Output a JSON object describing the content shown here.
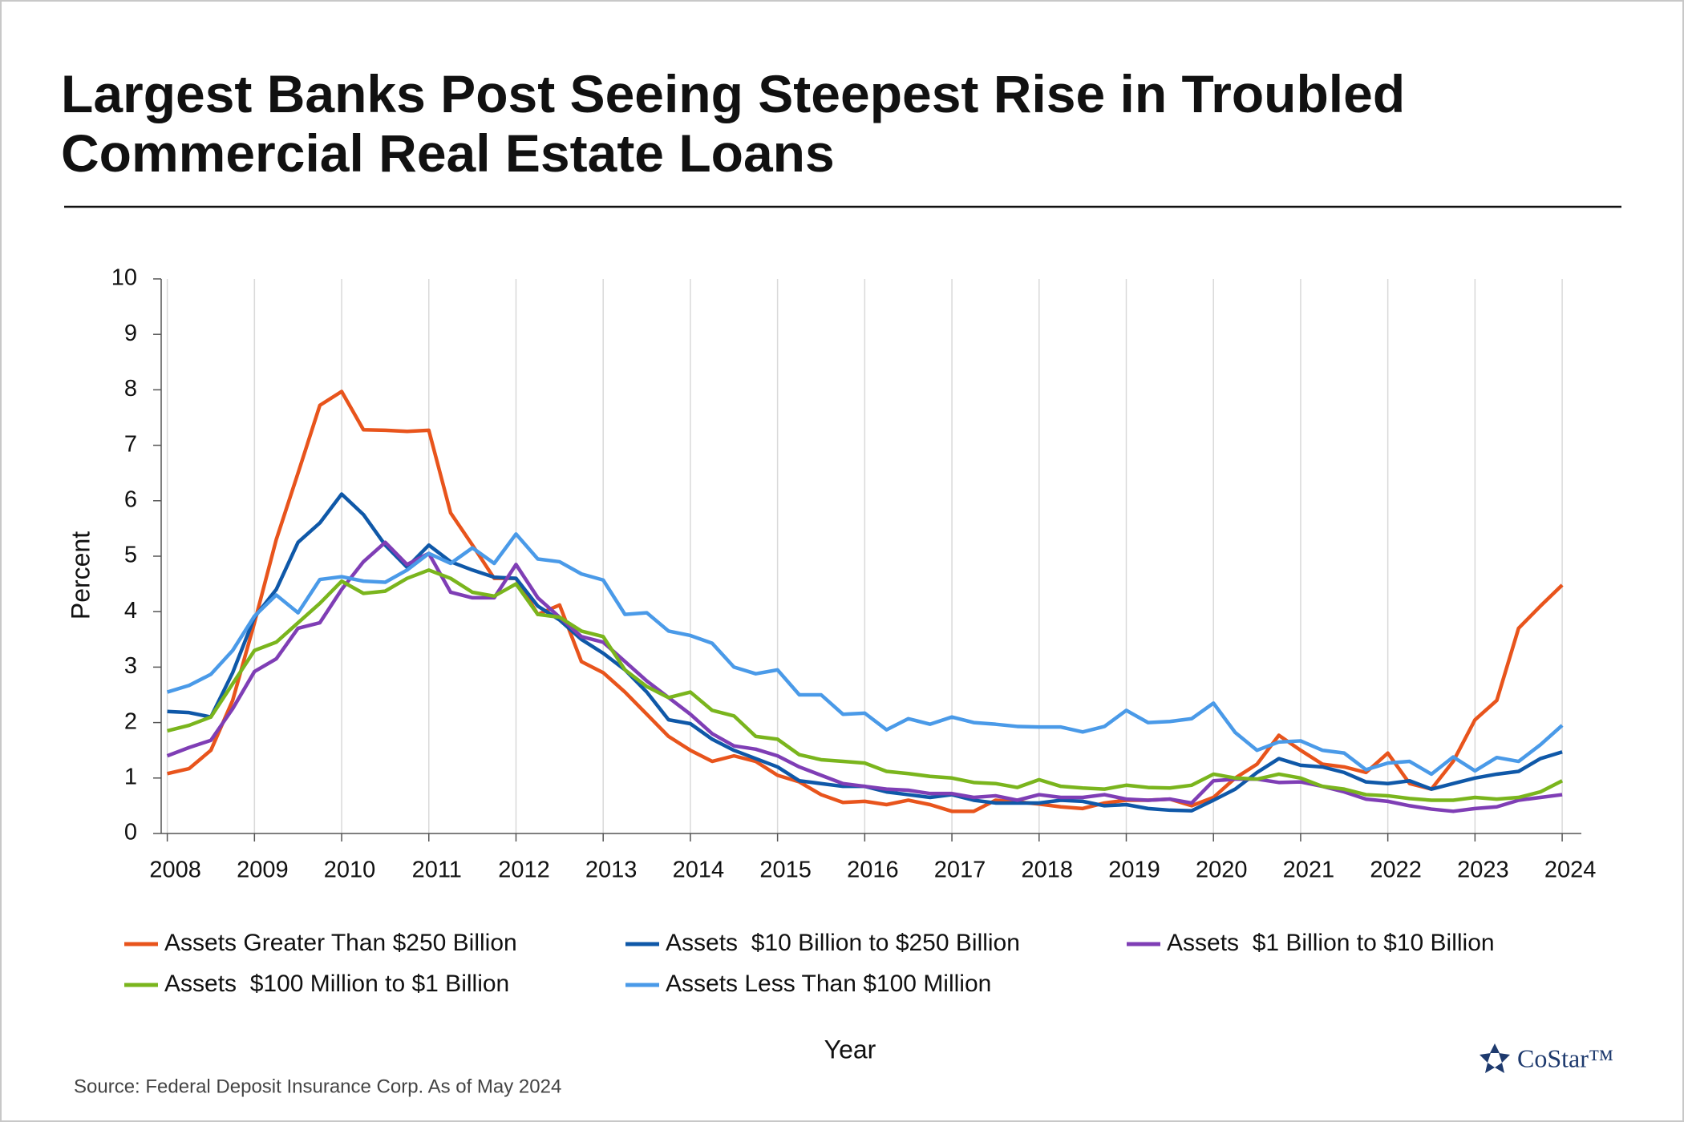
{
  "chart_data": {
    "type": "line",
    "title": [
      "Largest Banks Post Seeing Steepest Rise in Troubled",
      "Commercial Real Estate Loans"
    ],
    "x_label": "Year",
    "y_label": "Percent",
    "source": "Source:  Federal Deposit Insurance Corp. As of May 2024",
    "logo": "CoStar™",
    "legend": "bottom",
    "grid": "x",
    "xlim": [
      2007.93,
      2024.22
    ],
    "xticks": [
      2008,
      2009,
      2010,
      2011,
      2012,
      2013,
      2014,
      2015,
      2016,
      2017,
      2018,
      2019,
      2020,
      2021,
      2022,
      2023,
      2024
    ],
    "ylim": [
      0,
      10
    ],
    "yticks": [
      0,
      1,
      2,
      3,
      4,
      5,
      6,
      7,
      8,
      9,
      10
    ],
    "x": [
      2008,
      2008.25,
      2008.5,
      2008.75,
      2009,
      2009.25,
      2009.5,
      2009.75,
      2010,
      2010.25,
      2010.5,
      2010.75,
      2011,
      2011.25,
      2011.5,
      2011.75,
      2012,
      2012.25,
      2012.5,
      2012.75,
      2013,
      2013.25,
      2013.5,
      2013.75,
      2014,
      2014.25,
      2014.5,
      2014.75,
      2015,
      2015.25,
      2015.5,
      2015.75,
      2016,
      2016.25,
      2016.5,
      2016.75,
      2017,
      2017.25,
      2017.5,
      2017.75,
      2018,
      2018.25,
      2018.5,
      2018.75,
      2019,
      2019.25,
      2019.5,
      2019.75,
      2020,
      2020.25,
      2020.5,
      2020.75,
      2021,
      2021.25,
      2021.5,
      2021.75,
      2022,
      2022.25,
      2022.5,
      2022.75,
      2023,
      2023.25,
      2023.5,
      2023.75,
      2024
    ],
    "series": [
      {
        "name": "Assets Greater Than $250 Billion",
        "color": "#e8541c",
        "values": [
          1.08,
          1.17,
          1.5,
          2.4,
          3.8,
          5.3,
          6.5,
          7.72,
          7.97,
          7.28,
          7.27,
          7.25,
          7.27,
          5.78,
          5.2,
          4.6,
          4.6,
          3.95,
          4.12,
          3.1,
          2.9,
          2.55,
          2.15,
          1.75,
          1.5,
          1.3,
          1.4,
          1.3,
          1.05,
          0.93,
          0.7,
          0.56,
          0.58,
          0.52,
          0.6,
          0.52,
          0.4,
          0.4,
          0.6,
          0.57,
          0.53,
          0.48,
          0.45,
          0.55,
          0.6,
          0.6,
          0.62,
          0.5,
          0.65,
          1.0,
          1.25,
          1.77,
          1.5,
          1.25,
          1.2,
          1.1,
          1.45,
          0.9,
          0.8,
          1.3,
          2.05,
          2.4,
          3.7,
          4.1,
          4.48
        ]
      },
      {
        "name": "Assets  $10 Billion to $250 Billion",
        "color": "#0f58a8",
        "values": [
          2.2,
          2.18,
          2.1,
          2.9,
          3.9,
          4.4,
          5.25,
          5.6,
          6.12,
          5.75,
          5.2,
          4.8,
          5.2,
          4.9,
          4.75,
          4.62,
          4.6,
          4.1,
          3.85,
          3.5,
          3.25,
          2.95,
          2.55,
          2.05,
          1.98,
          1.7,
          1.5,
          1.35,
          1.2,
          0.95,
          0.9,
          0.85,
          0.85,
          0.75,
          0.7,
          0.65,
          0.7,
          0.6,
          0.55,
          0.55,
          0.55,
          0.6,
          0.58,
          0.5,
          0.52,
          0.45,
          0.42,
          0.41,
          0.6,
          0.8,
          1.1,
          1.35,
          1.23,
          1.2,
          1.1,
          0.93,
          0.9,
          0.95,
          0.8,
          0.9,
          1.0,
          1.07,
          1.12,
          1.35,
          1.47
        ]
      },
      {
        "name": "Assets  $1 Billion to $10 Billion",
        "color": "#7f3eb5",
        "values": [
          1.4,
          1.55,
          1.68,
          2.25,
          2.92,
          3.15,
          3.7,
          3.8,
          4.4,
          4.9,
          5.25,
          4.85,
          5.05,
          4.35,
          4.25,
          4.25,
          4.85,
          4.25,
          3.9,
          3.55,
          3.45,
          3.1,
          2.75,
          2.45,
          2.15,
          1.8,
          1.58,
          1.52,
          1.4,
          1.2,
          1.05,
          0.9,
          0.85,
          0.8,
          0.78,
          0.72,
          0.72,
          0.65,
          0.68,
          0.6,
          0.7,
          0.65,
          0.65,
          0.7,
          0.62,
          0.6,
          0.62,
          0.55,
          0.95,
          0.98,
          0.98,
          0.92,
          0.93,
          0.85,
          0.75,
          0.62,
          0.58,
          0.5,
          0.44,
          0.4,
          0.45,
          0.48,
          0.6,
          0.65,
          0.7
        ]
      },
      {
        "name": "Assets  $100 Million to $1 Billion",
        "color": "#7ab51d",
        "values": [
          1.85,
          1.95,
          2.1,
          2.7,
          3.3,
          3.45,
          3.8,
          4.15,
          4.55,
          4.33,
          4.37,
          4.6,
          4.75,
          4.6,
          4.35,
          4.28,
          4.5,
          3.95,
          3.9,
          3.65,
          3.55,
          2.95,
          2.65,
          2.45,
          2.55,
          2.22,
          2.12,
          1.75,
          1.7,
          1.42,
          1.33,
          1.3,
          1.27,
          1.12,
          1.08,
          1.03,
          1.0,
          0.92,
          0.9,
          0.83,
          0.97,
          0.85,
          0.82,
          0.8,
          0.87,
          0.83,
          0.82,
          0.87,
          1.07,
          1.0,
          0.98,
          1.07,
          1.0,
          0.85,
          0.8,
          0.7,
          0.68,
          0.63,
          0.6,
          0.6,
          0.65,
          0.62,
          0.65,
          0.75,
          0.95
        ]
      },
      {
        "name": "Assets Less Than $100 Million",
        "color": "#4a9ae8",
        "values": [
          2.55,
          2.67,
          2.87,
          3.3,
          3.92,
          4.3,
          3.98,
          4.58,
          4.63,
          4.55,
          4.53,
          4.75,
          5.05,
          4.87,
          5.15,
          4.87,
          5.4,
          4.95,
          4.9,
          4.68,
          4.57,
          3.95,
          3.98,
          3.65,
          3.57,
          3.43,
          3.0,
          2.88,
          2.95,
          2.5,
          2.5,
          2.15,
          2.17,
          1.87,
          2.07,
          1.97,
          2.1,
          2.0,
          1.97,
          1.93,
          1.92,
          1.92,
          1.83,
          1.93,
          2.22,
          2.0,
          2.02,
          2.07,
          2.35,
          1.82,
          1.5,
          1.65,
          1.67,
          1.5,
          1.45,
          1.15,
          1.27,
          1.3,
          1.07,
          1.38,
          1.13,
          1.37,
          1.3,
          1.6,
          1.95
        ]
      }
    ]
  }
}
